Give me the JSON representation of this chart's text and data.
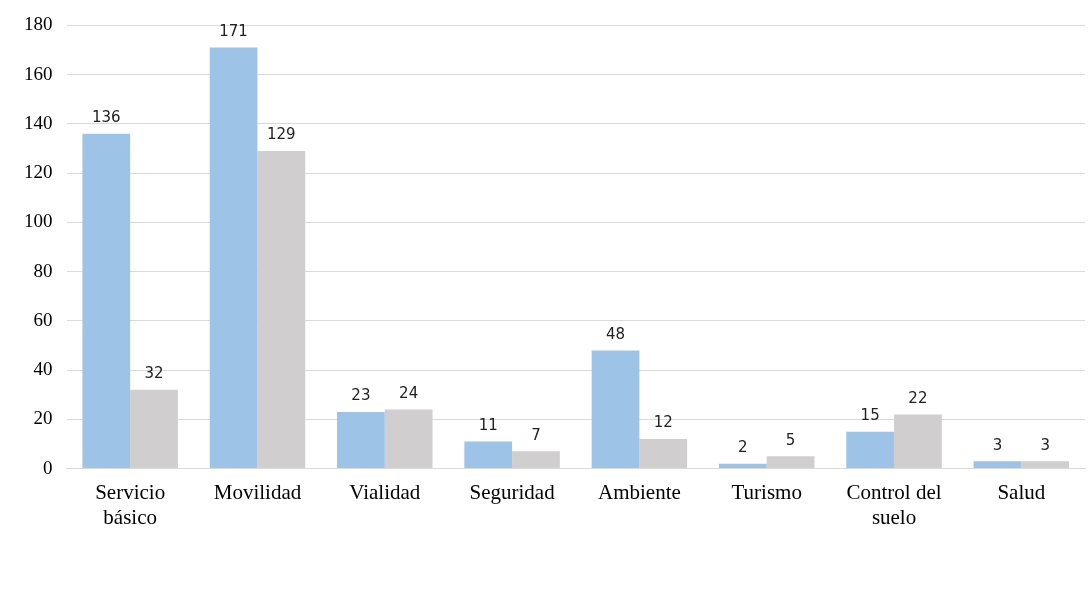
{
  "chart_data": {
    "type": "bar",
    "categories": [
      "Servicio básico",
      "Movilidad",
      "Vialidad",
      "Seguridad",
      "Ambiente",
      "Turismo",
      "Control del suelo",
      "Salud"
    ],
    "series": [
      {
        "color": "#9dc3e6",
        "values": [
          136,
          171,
          23,
          11,
          48,
          2,
          15,
          3
        ]
      },
      {
        "color": "#d0cece",
        "values": [
          32,
          129,
          24,
          7,
          12,
          5,
          22,
          3
        ]
      }
    ],
    "ylim": [
      0,
      180
    ],
    "yticks": [
      0,
      20,
      40,
      60,
      80,
      100,
      120,
      140,
      160,
      180
    ],
    "grid": "y",
    "legend": false,
    "data_labels": true
  }
}
